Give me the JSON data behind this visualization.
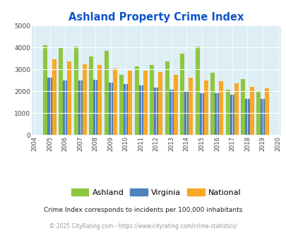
{
  "title": "Ashland Property Crime Index",
  "years": [
    2004,
    2005,
    2006,
    2007,
    2008,
    2009,
    2010,
    2011,
    2012,
    2013,
    2014,
    2015,
    2016,
    2017,
    2018,
    2019,
    2020
  ],
  "ashland": [
    null,
    4100,
    4020,
    4050,
    3580,
    3840,
    2760,
    3140,
    3210,
    3360,
    3720,
    4040,
    2840,
    2080,
    2560,
    2020,
    null
  ],
  "virginia": [
    null,
    2630,
    2490,
    2490,
    2530,
    2410,
    2330,
    2280,
    2160,
    2090,
    1970,
    1900,
    1900,
    1840,
    1670,
    1650,
    null
  ],
  "national": [
    null,
    3460,
    3350,
    3250,
    3220,
    3050,
    2950,
    2940,
    2890,
    2750,
    2620,
    2500,
    2470,
    2370,
    2200,
    2140,
    null
  ],
  "ashland_color": "#8dc63f",
  "virginia_color": "#4f81bd",
  "national_color": "#f9a825",
  "bg_color": "#ddeef5",
  "ylim": [
    0,
    5000
  ],
  "yticks": [
    0,
    1000,
    2000,
    3000,
    4000,
    5000
  ],
  "subtitle": "Crime Index corresponds to incidents per 100,000 inhabitants",
  "footer": "© 2025 CityRating.com - https://www.cityrating.com/crime-statistics/",
  "title_color": "#1155cc",
  "subtitle_color": "#222222",
  "footer_color": "#999999",
  "bar_width": 0.28,
  "legend_labels": [
    "Ashland",
    "Virginia",
    "National"
  ]
}
